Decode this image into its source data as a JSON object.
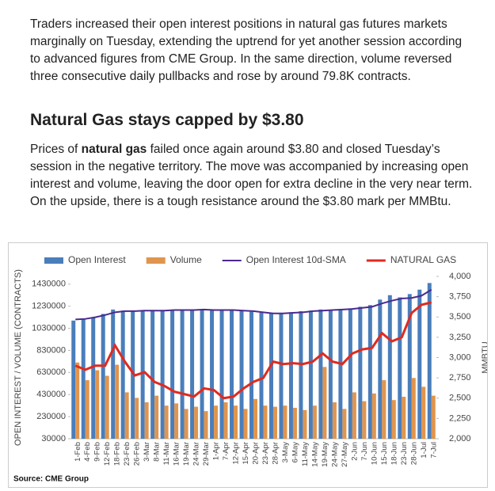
{
  "article": {
    "paragraph1": "Traders increased their open interest positions in natural gas futures markets marginally on Tuesday, extending the uptrend for yet another session according to advanced figures from CME Group. In the same direction, volume reversed three consecutive daily pullbacks and rose by around 79.8K contracts.",
    "heading": "Natural Gas stays capped by $3.80",
    "paragraph2_before": "Prices of ",
    "paragraph2_bold": "natural gas",
    "paragraph2_after": " failed once again around $3.80 and closed Tuesday’s session in the negative territory. The move was accompanied by increasing open interest and volume, leaving the door open for extra decline in the very near term. On the upside, there is a tough resistance around the $3.80 mark per MMBtu."
  },
  "chart_data": {
    "type": "bar-line",
    "categories": [
      "1-Feb",
      "4-Feb",
      "9-Feb",
      "12-Feb",
      "18-Feb",
      "23-Feb",
      "26-Feb",
      "3-Mar",
      "8-Mar",
      "11-Mar",
      "16-Mar",
      "19-Mar",
      "24-Mar",
      "29-Mar",
      "1-Apr",
      "7-Apr",
      "12-Apr",
      "15-Apr",
      "20-Apr",
      "23-Apr",
      "28-Apr",
      "3-May",
      "6-May",
      "11-May",
      "14-May",
      "19-May",
      "24-May",
      "27-May",
      "2-Jun",
      "7-Jun",
      "10-Jun",
      "15-Jun",
      "18-Jun",
      "23-Jun",
      "28-Jun",
      "1-Jul",
      "7-Jul"
    ],
    "series": [
      {
        "name": "Open Interest",
        "kind": "bar",
        "color": "#4a7ebb",
        "values": [
          1100000,
          1110000,
          1130000,
          1160000,
          1200000,
          1190000,
          1185000,
          1190000,
          1195000,
          1190000,
          1195000,
          1190000,
          1195000,
          1200000,
          1195000,
          1190000,
          1195000,
          1185000,
          1180000,
          1170000,
          1165000,
          1170000,
          1175000,
          1185000,
          1190000,
          1200000,
          1195000,
          1200000,
          1210000,
          1225000,
          1240000,
          1290000,
          1330000,
          1310000,
          1340000,
          1380000,
          1440000
        ]
      },
      {
        "name": "Volume",
        "kind": "bar",
        "color": "#e0954e",
        "values": [
          720000,
          560000,
          650000,
          600000,
          700000,
          450000,
          400000,
          360000,
          420000,
          330000,
          350000,
          300000,
          320000,
          280000,
          330000,
          360000,
          330000,
          300000,
          390000,
          330000,
          320000,
          330000,
          310000,
          290000,
          330000,
          680000,
          360000,
          300000,
          450000,
          370000,
          440000,
          560000,
          380000,
          410000,
          580000,
          500000,
          420000
        ]
      },
      {
        "name": "Open Interest 10d-SMA",
        "kind": "line",
        "color": "#4b2a8e",
        "values": [
          1110000,
          1115000,
          1130000,
          1150000,
          1175000,
          1185000,
          1185000,
          1190000,
          1190000,
          1190000,
          1195000,
          1195000,
          1195000,
          1200000,
          1195000,
          1195000,
          1195000,
          1190000,
          1185000,
          1175000,
          1165000,
          1165000,
          1170000,
          1175000,
          1185000,
          1190000,
          1195000,
          1200000,
          1205000,
          1215000,
          1225000,
          1255000,
          1280000,
          1300000,
          1305000,
          1325000,
          1380000
        ]
      },
      {
        "name": "NATURAL GAS",
        "kind": "line",
        "axis": "y2",
        "color": "#e02a1f",
        "values": [
          2900,
          2850,
          2900,
          2900,
          3150,
          2950,
          2780,
          2820,
          2700,
          2650,
          2580,
          2550,
          2520,
          2620,
          2600,
          2500,
          2520,
          2620,
          2700,
          2750,
          2950,
          2920,
          2930,
          2920,
          2950,
          3050,
          2950,
          2920,
          3050,
          3100,
          3120,
          3300,
          3200,
          3250,
          3550,
          3650,
          3680
        ]
      }
    ],
    "ylim": [
      30000,
      1500000
    ],
    "yticks": [
      30000,
      230000,
      430000,
      630000,
      830000,
      1030000,
      1230000,
      1430000
    ],
    "y2lim": [
      2000,
      4000
    ],
    "y2ticks": [
      {
        "value": 2000,
        "label": "2,000"
      },
      {
        "value": 2250,
        "label": "2,250"
      },
      {
        "value": 2500,
        "label": "2,500"
      },
      {
        "value": 2750,
        "label": "2,750"
      },
      {
        "value": 3000,
        "label": "3,000"
      },
      {
        "value": 3250,
        "label": "3,250"
      },
      {
        "value": 3500,
        "label": "3,500"
      },
      {
        "value": 3750,
        "label": "3,750"
      },
      {
        "value": 4000,
        "label": "4,000"
      }
    ],
    "ylabel": "OPEN INTEREST / VOLUME (CONTRACTS)",
    "y2label": "MMBTU",
    "source": "Source: CME Group",
    "legend": "top"
  }
}
